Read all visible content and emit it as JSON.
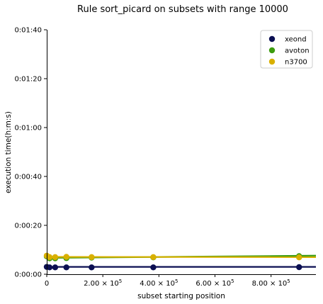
{
  "chart_data": {
    "type": "scatter",
    "title": "Rule sort_picard on subsets with range 10000",
    "xlabel": "subset starting position",
    "ylabel": "execution time(h:m:s)",
    "xlim": [
      0,
      960000
    ],
    "ylim": [
      0,
      100
    ],
    "x_ticks": [
      {
        "value": 0,
        "label": "0"
      },
      {
        "value": 200000,
        "mant": "2.00",
        "exp": "5"
      },
      {
        "value": 400000,
        "mant": "4.00",
        "exp": "5"
      },
      {
        "value": 600000,
        "mant": "6.00",
        "exp": "5"
      },
      {
        "value": 800000,
        "mant": "8.00",
        "exp": "5"
      }
    ],
    "y_ticks": [
      {
        "value": 0,
        "label": "0:00:00"
      },
      {
        "value": 20,
        "label": "0:00:20"
      },
      {
        "value": 40,
        "label": "0:00:40"
      },
      {
        "value": 60,
        "label": "0:01:00"
      },
      {
        "value": 80,
        "label": "0:01:20"
      },
      {
        "value": 100,
        "label": "0:01:40"
      }
    ],
    "legend_position": "top-right",
    "series": [
      {
        "name": "xeond",
        "color": "#0b0f52",
        "x": [
          0,
          10000,
          30000,
          70000,
          160000,
          380000,
          900000
        ],
        "y": [
          3,
          2.8,
          2.8,
          2.8,
          2.8,
          2.8,
          2.9
        ],
        "fit": [
          3.0,
          3.0
        ]
      },
      {
        "name": "avoton",
        "color": "#3d9c0f",
        "x": [
          0,
          10000,
          30000,
          70000,
          160000,
          380000,
          900000
        ],
        "y": [
          7.3,
          6.5,
          6.5,
          6.6,
          6.8,
          6.9,
          7.4
        ],
        "fit": [
          6.7,
          7.6
        ]
      },
      {
        "name": "n3700",
        "color": "#d9b000",
        "x": [
          0,
          10000,
          30000,
          70000,
          160000,
          380000,
          900000
        ],
        "y": [
          7.6,
          7.0,
          7.0,
          7.1,
          7.0,
          7.0,
          6.9
        ],
        "fit": [
          7.1,
          7.0
        ]
      }
    ]
  }
}
